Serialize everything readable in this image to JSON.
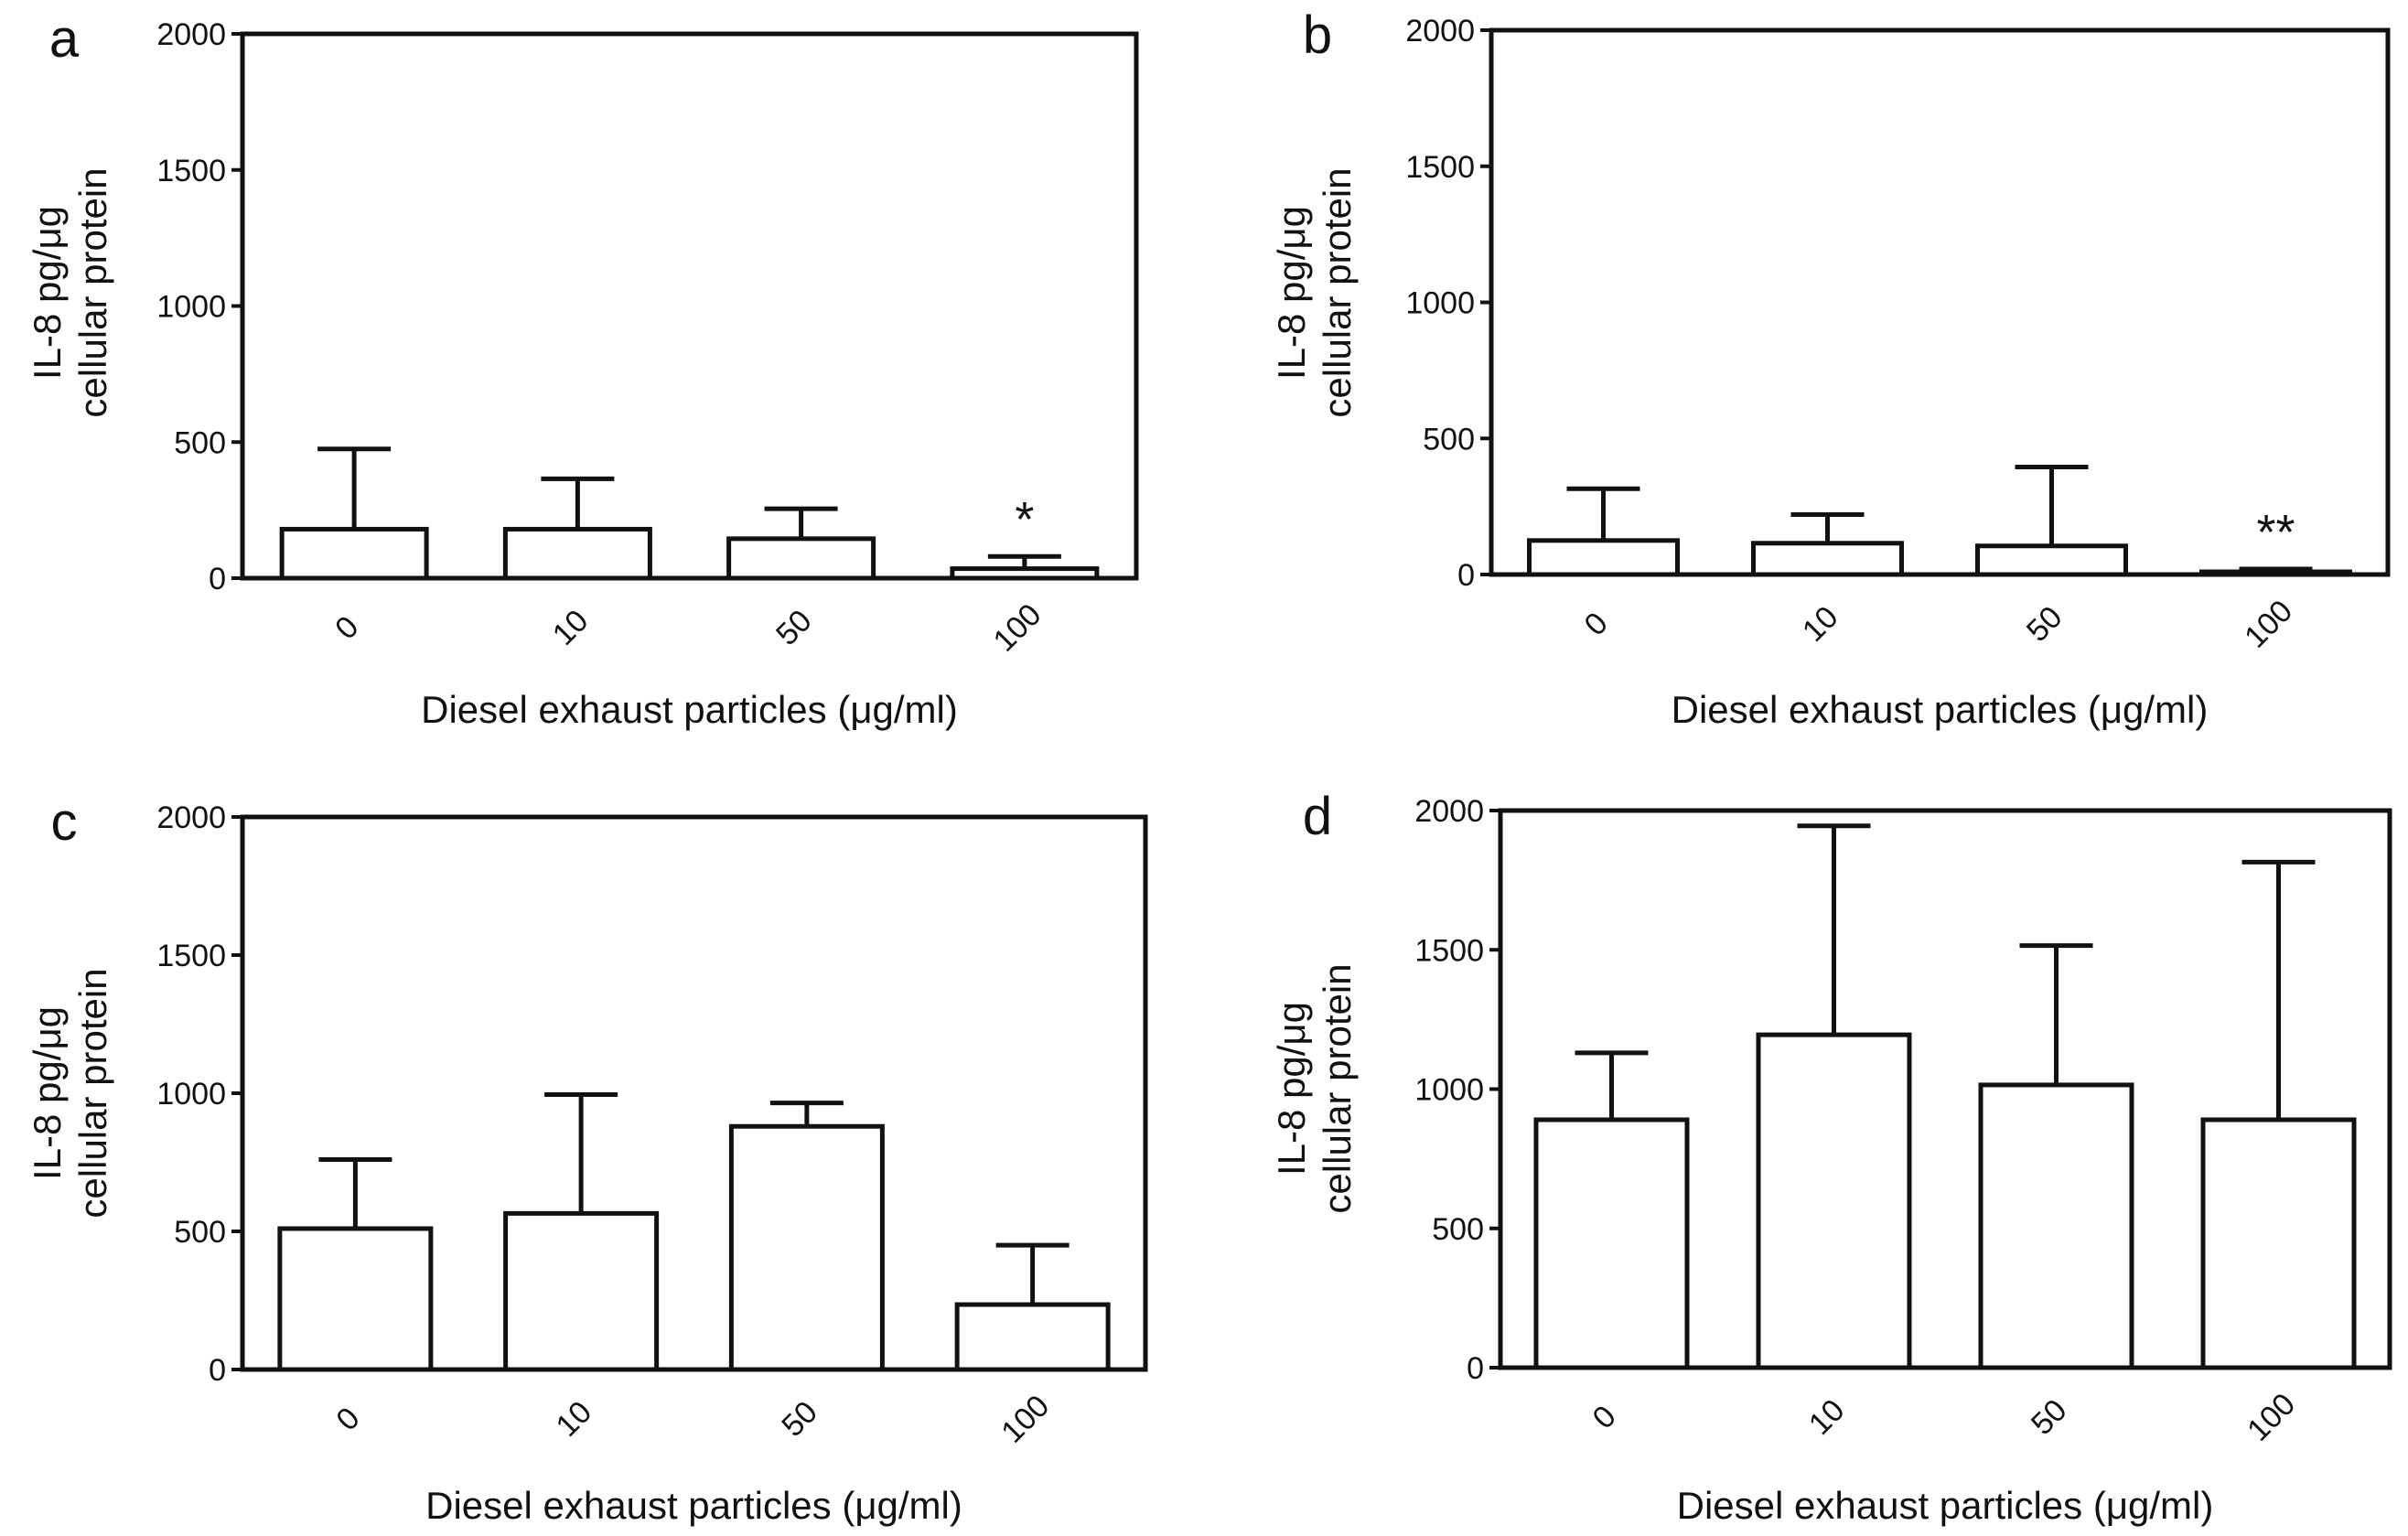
{
  "colors": {
    "ink": "#111111",
    "bar_fill": "#ffffff",
    "background": "#ffffff"
  },
  "chart_data": [
    {
      "panel": "a",
      "type": "bar",
      "categories": [
        "0",
        "10",
        "50",
        "100"
      ],
      "values": [
        180,
        180,
        145,
        35
      ],
      "error_upper": [
        475,
        365,
        255,
        80
      ],
      "ylim": [
        0,
        2000
      ],
      "yticks": [
        "0",
        "500",
        "1000",
        "1500",
        "2000"
      ],
      "ylabel": [
        "IL-8 pg/μg",
        "cellular protein"
      ],
      "xlabel": "Diesel exhaust particles (μg/ml)",
      "annotations": [
        "",
        "",
        "",
        "*"
      ],
      "grid": false
    },
    {
      "panel": "b",
      "type": "bar",
      "categories": [
        "0",
        "10",
        "50",
        "100"
      ],
      "values": [
        125,
        115,
        105,
        10
      ],
      "error_upper": [
        315,
        220,
        395,
        20
      ],
      "ylim": [
        0,
        2000
      ],
      "yticks": [
        "0",
        "500",
        "1000",
        "1500",
        "2000"
      ],
      "ylabel": [
        "IL-8 pg/μg",
        "cellular protein"
      ],
      "xlabel": "Diesel exhaust particles (μg/ml)",
      "annotations": [
        "",
        "",
        "",
        "**"
      ],
      "grid": false
    },
    {
      "panel": "c",
      "type": "bar",
      "categories": [
        "0",
        "10",
        "50",
        "100"
      ],
      "values": [
        510,
        565,
        880,
        235
      ],
      "error_upper": [
        760,
        995,
        965,
        450
      ],
      "ylim": [
        0,
        2000
      ],
      "yticks": [
        "0",
        "500",
        "1000",
        "1500",
        "2000"
      ],
      "ylabel": [
        "IL-8 pg/μg",
        "cellular protein"
      ],
      "xlabel": "Diesel exhaust particles (μg/ml)",
      "annotations": [
        "",
        "",
        "",
        ""
      ],
      "grid": false
    },
    {
      "panel": "d",
      "type": "bar",
      "categories": [
        "0",
        "10",
        "50",
        "100"
      ],
      "values": [
        890,
        1195,
        1015,
        890
      ],
      "error_upper": [
        1130,
        1945,
        1515,
        1815
      ],
      "ylim": [
        0,
        2000
      ],
      "yticks": [
        "0",
        "500",
        "1000",
        "1500",
        "2000"
      ],
      "ylabel": [
        "IL-8 pg/μg",
        "cellular protein"
      ],
      "xlabel": "Diesel exhaust particles (μg/ml)",
      "annotations": [
        "",
        "",
        "",
        ""
      ],
      "grid": false
    }
  ]
}
